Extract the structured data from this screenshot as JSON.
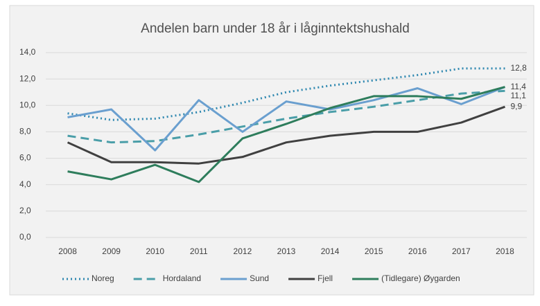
{
  "chart_data": {
    "type": "line",
    "title": "Andelen barn under 18 år i låginntektshushald",
    "categories": [
      "2008",
      "2009",
      "2010",
      "2011",
      "2012",
      "2013",
      "2014",
      "2015",
      "2016",
      "2017",
      "2018"
    ],
    "series": [
      {
        "name": "Noreg",
        "color": "#2f88b0",
        "style": "dotted",
        "values": [
          9.4,
          8.9,
          9.0,
          9.5,
          10.2,
          11.0,
          11.5,
          11.9,
          12.3,
          12.8,
          12.8
        ],
        "value_labels": [
          null,
          null,
          null,
          null,
          null,
          null,
          null,
          null,
          null,
          null,
          "12,8"
        ]
      },
      {
        "name": "Hordaland",
        "color": "#4a9ea8",
        "style": "dashed",
        "values": [
          7.7,
          7.2,
          7.3,
          7.8,
          8.4,
          9.0,
          9.5,
          9.9,
          10.4,
          10.9,
          11.1
        ],
        "value_labels": [
          null,
          null,
          null,
          null,
          null,
          null,
          null,
          null,
          null,
          null,
          "11,1"
        ]
      },
      {
        "name": "Sund",
        "color": "#6a9fcf",
        "style": "solid",
        "values": [
          9.1,
          9.7,
          6.6,
          10.4,
          8.0,
          10.3,
          9.7,
          10.4,
          11.3,
          10.1,
          11.4
        ]
      },
      {
        "name": "Fjell",
        "color": "#404040",
        "style": "solid",
        "values": [
          7.2,
          5.7,
          5.7,
          5.6,
          6.1,
          7.2,
          7.7,
          8.0,
          8.0,
          8.7,
          9.9
        ],
        "value_labels": [
          null,
          null,
          null,
          null,
          null,
          null,
          null,
          null,
          null,
          null,
          "9,9"
        ]
      },
      {
        "name": "(Tidlegare) Øygarden",
        "color": "#2e7d5c",
        "style": "solid",
        "values": [
          5.0,
          4.4,
          5.5,
          4.2,
          7.5,
          8.6,
          9.8,
          10.7,
          10.7,
          10.5,
          11.4
        ],
        "value_labels": [
          null,
          null,
          null,
          null,
          null,
          null,
          null,
          null,
          null,
          null,
          "11,4"
        ]
      }
    ],
    "ylim": [
      0,
      14
    ],
    "yticks": [
      {
        "value": 0,
        "label": "0,0"
      },
      {
        "value": 2,
        "label": "2,0"
      },
      {
        "value": 4,
        "label": "4,0"
      },
      {
        "value": 6,
        "label": "6,0"
      },
      {
        "value": 8,
        "label": "8,0"
      },
      {
        "value": 10,
        "label": "10,0"
      },
      {
        "value": 12,
        "label": "12,0"
      },
      {
        "value": 14,
        "label": "14,0"
      }
    ],
    "grid": true,
    "legend": "bottom"
  }
}
